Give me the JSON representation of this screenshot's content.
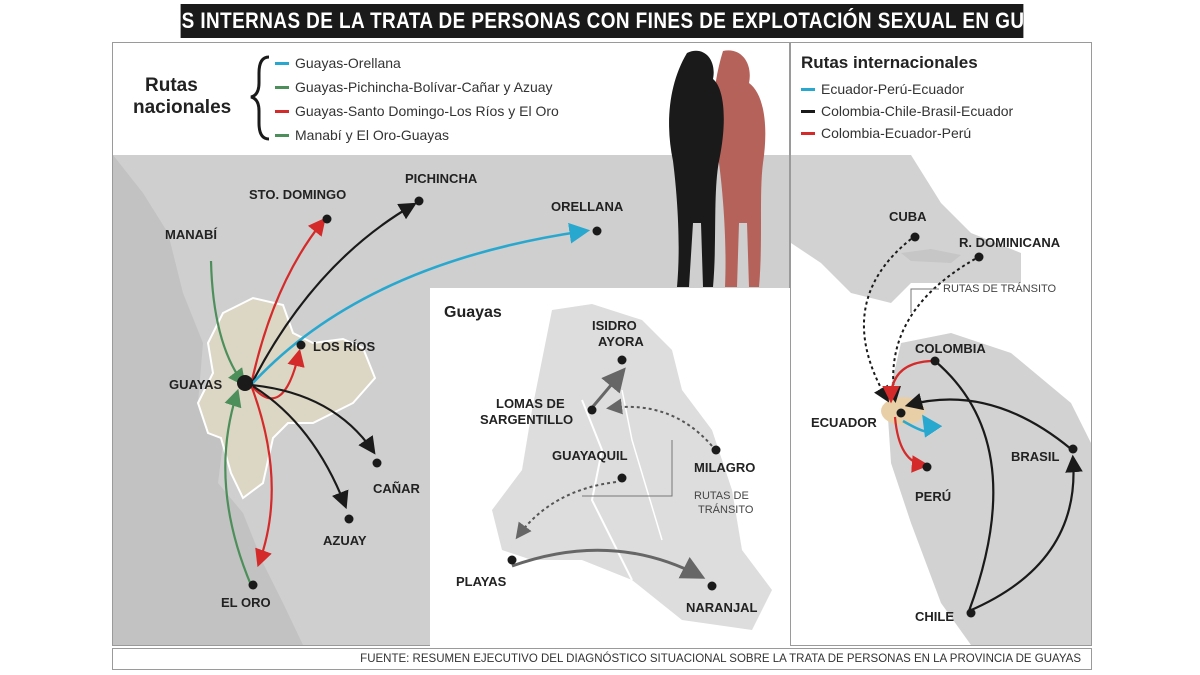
{
  "title": "RUTAS INTERNAS DE LA TRATA DE PERSONAS CON FINES DE EXPLOTACIÓN SEXUAL EN GUAYAS",
  "national": {
    "heading_line1": "Rutas",
    "heading_line2": "nacionales",
    "routes": [
      {
        "label": "Guayas-Orellana",
        "color": "#29a8cf"
      },
      {
        "label": "Guayas-Pichincha-Bolívar-Cañar y Azuay",
        "color": "#4d8f5a"
      },
      {
        "label": "Guayas-Santo Domingo-Los Ríos y El Oro",
        "color": "#d42a2a"
      },
      {
        "label": "Manabí y El Oro-Guayas",
        "color": "#4d8f5a"
      }
    ],
    "places": {
      "sto_domingo": "STO. DOMINGO",
      "pichincha": "PICHINCHA",
      "orellana": "ORELLANA",
      "manabi": "MANABÍ",
      "los_rios": "LOS RÍOS",
      "guayas": "GUAYAS",
      "canar": "CAÑAR",
      "azuay": "AZUAY",
      "el_oro": "EL ORO"
    }
  },
  "guayas_inset": {
    "heading": "Guayas",
    "places": {
      "isidro_ayora": [
        "ISIDRO",
        "AYORA"
      ],
      "lomas": [
        "LOMAS DE",
        "SARGENTILLO"
      ],
      "guayaquil": "GUAYAQUIL",
      "milagro": "MILAGRO",
      "playas": "PLAYAS",
      "naranjal": "NARANJAL"
    },
    "transit_note": [
      "RUTAS DE",
      "TRÁNSITO"
    ]
  },
  "international": {
    "heading": "Rutas internacionales",
    "routes": [
      {
        "label": "Ecuador-Perú-Ecuador",
        "color": "#29a8cf"
      },
      {
        "label": "Colombia-Chile-Brasil-Ecuador",
        "color": "#1a1a1a"
      },
      {
        "label": "Colombia-Ecuador-Perú",
        "color": "#d42a2a"
      }
    ],
    "places": {
      "cuba": "CUBA",
      "rdom": "R. DOMINICANA",
      "colombia": "COLOMBIA",
      "ecuador": "ECUADOR",
      "brasil": "BRASIL",
      "peru": "PERÚ",
      "chile": "CHILE"
    },
    "transit_note": "RUTAS DE TRÁNSITO"
  },
  "footer": "FUENTE: RESUMEN EJECUTIVO DEL DIAGNÓSTICO SITUACIONAL SOBRE LA TRATA DE PERSONAS EN LA PROVINCIA DE GUAYAS",
  "colors": {
    "map_gray": "#cfcfcf",
    "guayas_fill": "#dcd6c4",
    "silhouette_black": "#1a1a1a",
    "silhouette_red": "#b5625a"
  }
}
